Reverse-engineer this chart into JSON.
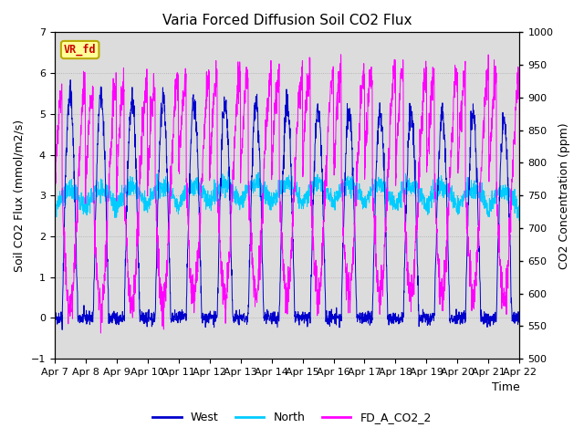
{
  "title": "Varia Forced Diffusion Soil CO2 Flux",
  "xlabel": "Time",
  "ylabel_left": "Soil CO2 Flux (mmol/m2/s)",
  "ylabel_right": "CO2 Concentration (ppm)",
  "ylim_left": [
    -1.0,
    7.0
  ],
  "ylim_right": [
    500,
    1000
  ],
  "yticks_left": [
    -1.0,
    0.0,
    1.0,
    2.0,
    3.0,
    4.0,
    5.0,
    6.0,
    7.0
  ],
  "yticks_right": [
    500,
    550,
    600,
    650,
    700,
    750,
    800,
    850,
    900,
    950,
    1000
  ],
  "date_labels": [
    "Apr 7",
    "Apr 8",
    "Apr 9",
    "Apr 10",
    "Apr 11",
    "Apr 12",
    "Apr 13",
    "Apr 14",
    "Apr 15",
    "Apr 16",
    "Apr 17",
    "Apr 18",
    "Apr 19",
    "Apr 20",
    "Apr 21",
    "Apr 22"
  ],
  "color_west": "#0000CD",
  "color_north": "#00CCFF",
  "color_co2": "#FF00FF",
  "legend_labels": [
    "West",
    "North",
    "FD_A_CO2_2"
  ],
  "label_box_text": "VR_fd",
  "label_box_facecolor": "#FFFF99",
  "label_box_edgecolor": "#BBAA00",
  "label_box_textcolor": "#CC0000",
  "background_color": "#DCDCDC",
  "seed": 42,
  "n_days": 15,
  "n_points_per_day": 144
}
